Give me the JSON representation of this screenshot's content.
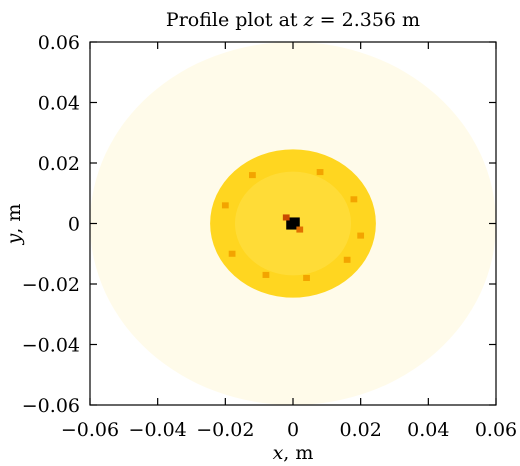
{
  "chart_data": {
    "type": "heatmap",
    "title": "Profile plot at z = 2.356 m",
    "xlabel": "x, m",
    "ylabel": "y, m",
    "xlim": [
      -0.06,
      0.06
    ],
    "ylim": [
      -0.06,
      0.06
    ],
    "xticks": [
      -0.06,
      -0.04,
      -0.02,
      0,
      0.02,
      0.04,
      0.06
    ],
    "yticks": [
      -0.06,
      -0.04,
      -0.02,
      0,
      0.02,
      0.04,
      0.06
    ],
    "xtick_labels": [
      "−0.06",
      "−0.04",
      "−0.02",
      "0",
      "0.02",
      "0.04",
      "0.06"
    ],
    "ytick_labels": [
      "−0.06",
      "−0.04",
      "−0.02",
      "0",
      "0.02",
      "0.04",
      "0.06"
    ],
    "grid": false,
    "colormap": "hot_r",
    "background_color": "#ffffff",
    "halo": {
      "radius": 0.06,
      "color": "#fffbea"
    },
    "core_disk": {
      "radius": 0.0245,
      "color": "#ffd620",
      "inner_color": "#ffe24a"
    },
    "hot_spots": [
      {
        "x": 0.0,
        "y": 0.0,
        "size": 0.004,
        "color": "#000000"
      },
      {
        "x": -0.002,
        "y": 0.002,
        "size": 0.002,
        "color": "#c94a00"
      },
      {
        "x": 0.002,
        "y": -0.002,
        "size": 0.002,
        "color": "#e07000"
      },
      {
        "x": -0.012,
        "y": 0.016,
        "size": 0.002,
        "color": "#f3a400"
      },
      {
        "x": 0.008,
        "y": 0.017,
        "size": 0.002,
        "color": "#f3a400"
      },
      {
        "x": 0.018,
        "y": 0.008,
        "size": 0.002,
        "color": "#f3a400"
      },
      {
        "x": 0.02,
        "y": -0.004,
        "size": 0.002,
        "color": "#f3a400"
      },
      {
        "x": 0.016,
        "y": -0.012,
        "size": 0.002,
        "color": "#f3a400"
      },
      {
        "x": -0.02,
        "y": 0.006,
        "size": 0.002,
        "color": "#f3a400"
      },
      {
        "x": -0.018,
        "y": -0.01,
        "size": 0.002,
        "color": "#f3a400"
      },
      {
        "x": -0.008,
        "y": -0.017,
        "size": 0.002,
        "color": "#f3a400"
      },
      {
        "x": 0.004,
        "y": -0.018,
        "size": 0.002,
        "color": "#f3a400"
      }
    ]
  }
}
